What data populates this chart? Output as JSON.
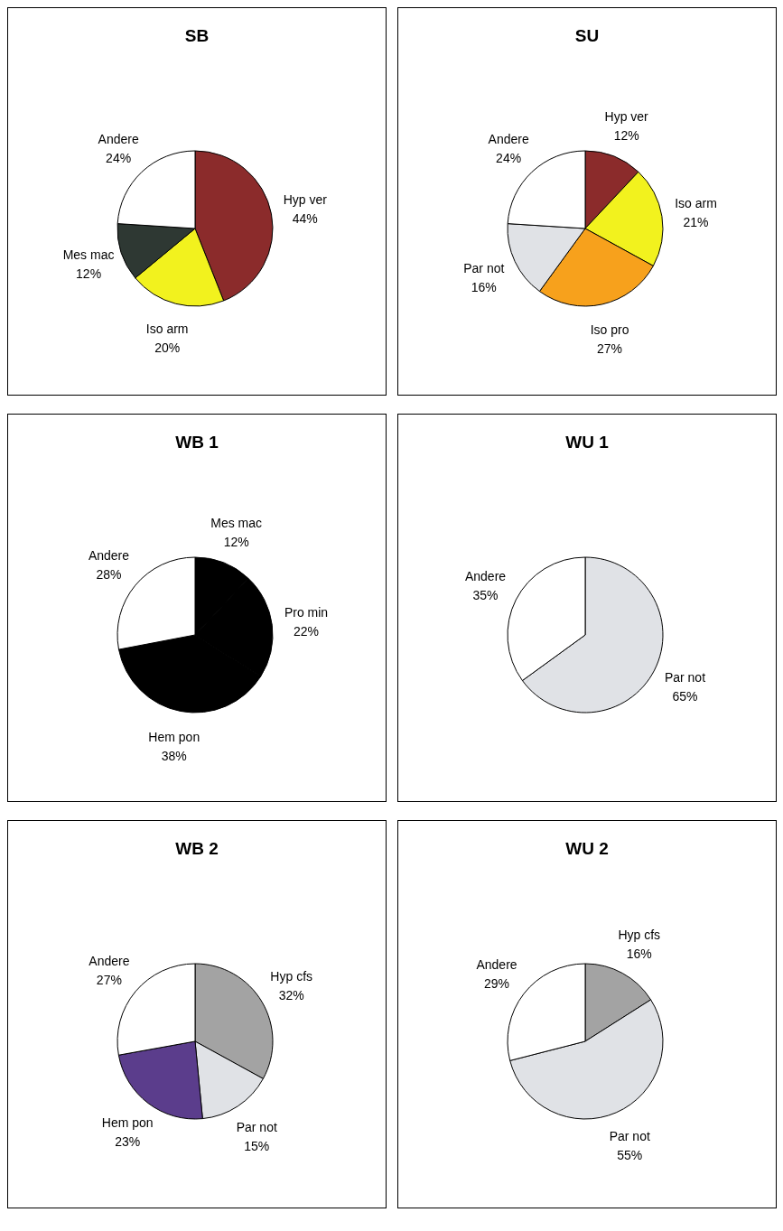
{
  "chart_data": [
    {
      "type": "pie",
      "title": "SB",
      "categories": [
        "Hyp ver",
        "Iso arm",
        "Mes mac",
        "Andere"
      ],
      "values": [
        44,
        20,
        12,
        24
      ],
      "value_labels": [
        "44%",
        "20%",
        "12%",
        "24%"
      ],
      "colors": [
        "#8b2b2b",
        "#f2f21e",
        "#2e3833",
        "#ffffff"
      ]
    },
    {
      "type": "pie",
      "title": "SU",
      "categories": [
        "Hyp ver",
        "Iso arm",
        "Iso pro",
        "Par not",
        "Andere"
      ],
      "values": [
        12,
        21,
        27,
        16,
        24
      ],
      "value_labels": [
        "12%",
        "21%",
        "27%",
        "16%",
        "24%"
      ],
      "colors": [
        "#8b2b2b",
        "#f2f21e",
        "#f7a11c",
        "#e0e2e6",
        "#ffffff"
      ]
    },
    {
      "type": "pie",
      "title": "WB 1",
      "categories": [
        "Mes mac",
        "Pro min",
        "Hem pon",
        "Andere"
      ],
      "values": [
        12,
        22,
        38,
        28
      ],
      "value_labels": [
        "12%",
        "22%",
        "38%",
        "28%"
      ],
      "colors": [
        "#000000",
        "#000000",
        "#000000",
        "#ffffff"
      ]
    },
    {
      "type": "pie",
      "title": "WU 1",
      "categories": [
        "Par not",
        "Andere"
      ],
      "values": [
        65,
        35
      ],
      "value_labels": [
        "65%",
        "35%"
      ],
      "colors": [
        "#e0e2e6",
        "#ffffff"
      ]
    },
    {
      "type": "pie",
      "title": "WB 2",
      "categories": [
        "Hyp cfs",
        "Par not",
        "Hem pon",
        "Andere"
      ],
      "values": [
        32,
        15,
        23,
        27
      ],
      "value_labels": [
        "32%",
        "15%",
        "23%",
        "27%"
      ],
      "colors": [
        "#a3a3a3",
        "#e0e2e6",
        "#5b3d8c",
        "#ffffff"
      ]
    },
    {
      "type": "pie",
      "title": "WU 2",
      "categories": [
        "Hyp cfs",
        "Par not",
        "Andere"
      ],
      "values": [
        16,
        55,
        29
      ],
      "value_labels": [
        "16%",
        "55%",
        "29%"
      ],
      "colors": [
        "#a3a3a3",
        "#e0e2e6",
        "#ffffff"
      ]
    }
  ]
}
